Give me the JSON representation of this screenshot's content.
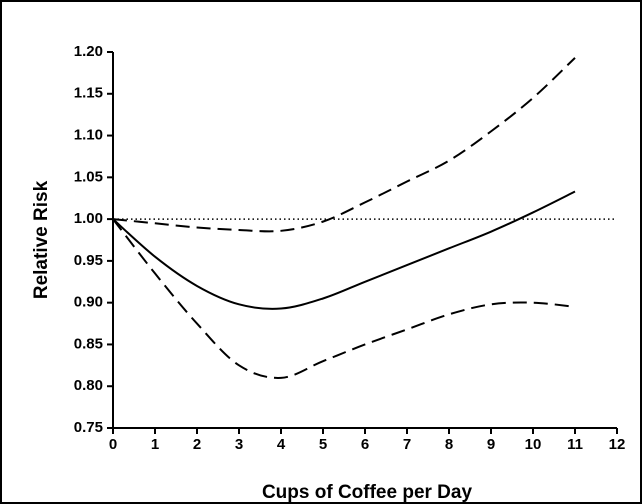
{
  "chart_data": {
    "type": "line",
    "xlabel": "Cups of Coffee per Day",
    "ylabel": "Relative Risk",
    "x": [
      0,
      1,
      2,
      3,
      4,
      5,
      6,
      7,
      8,
      9,
      10,
      11
    ],
    "series": [
      {
        "color": "#000000",
        "style": "solid",
        "values": [
          1.0,
          0.955,
          0.92,
          0.898,
          0.893,
          0.905,
          0.925,
          0.945,
          0.965,
          0.985,
          1.008,
          1.033
        ]
      },
      {
        "color": "#000000",
        "style": "dashed",
        "values": [
          1.0,
          0.995,
          0.99,
          0.987,
          0.986,
          0.997,
          1.02,
          1.045,
          1.07,
          1.105,
          1.145,
          1.193
        ]
      },
      {
        "color": "#000000",
        "style": "dashed",
        "values": [
          1.0,
          0.935,
          0.875,
          0.825,
          0.81,
          0.83,
          0.85,
          0.868,
          0.886,
          0.898,
          0.9,
          0.895
        ]
      }
    ],
    "hline": 1.0,
    "xlim": [
      0,
      12
    ],
    "xticks": [
      0,
      1,
      2,
      3,
      4,
      5,
      6,
      7,
      8,
      9,
      10,
      11,
      12
    ],
    "ylim": [
      0.75,
      1.2
    ],
    "yticks": [
      {
        "value": 0.75,
        "label": "0.75"
      },
      {
        "value": 0.8,
        "label": "0.80"
      },
      {
        "value": 0.85,
        "label": "0.85"
      },
      {
        "value": 0.9,
        "label": "0.90"
      },
      {
        "value": 0.95,
        "label": "0.95"
      },
      {
        "value": 1.0,
        "label": "1.00"
      },
      {
        "value": 1.05,
        "label": "1.05"
      },
      {
        "value": 1.1,
        "label": "1.10"
      },
      {
        "value": 1.15,
        "label": "1.15"
      },
      {
        "value": 1.2,
        "label": "1.20"
      }
    ]
  }
}
